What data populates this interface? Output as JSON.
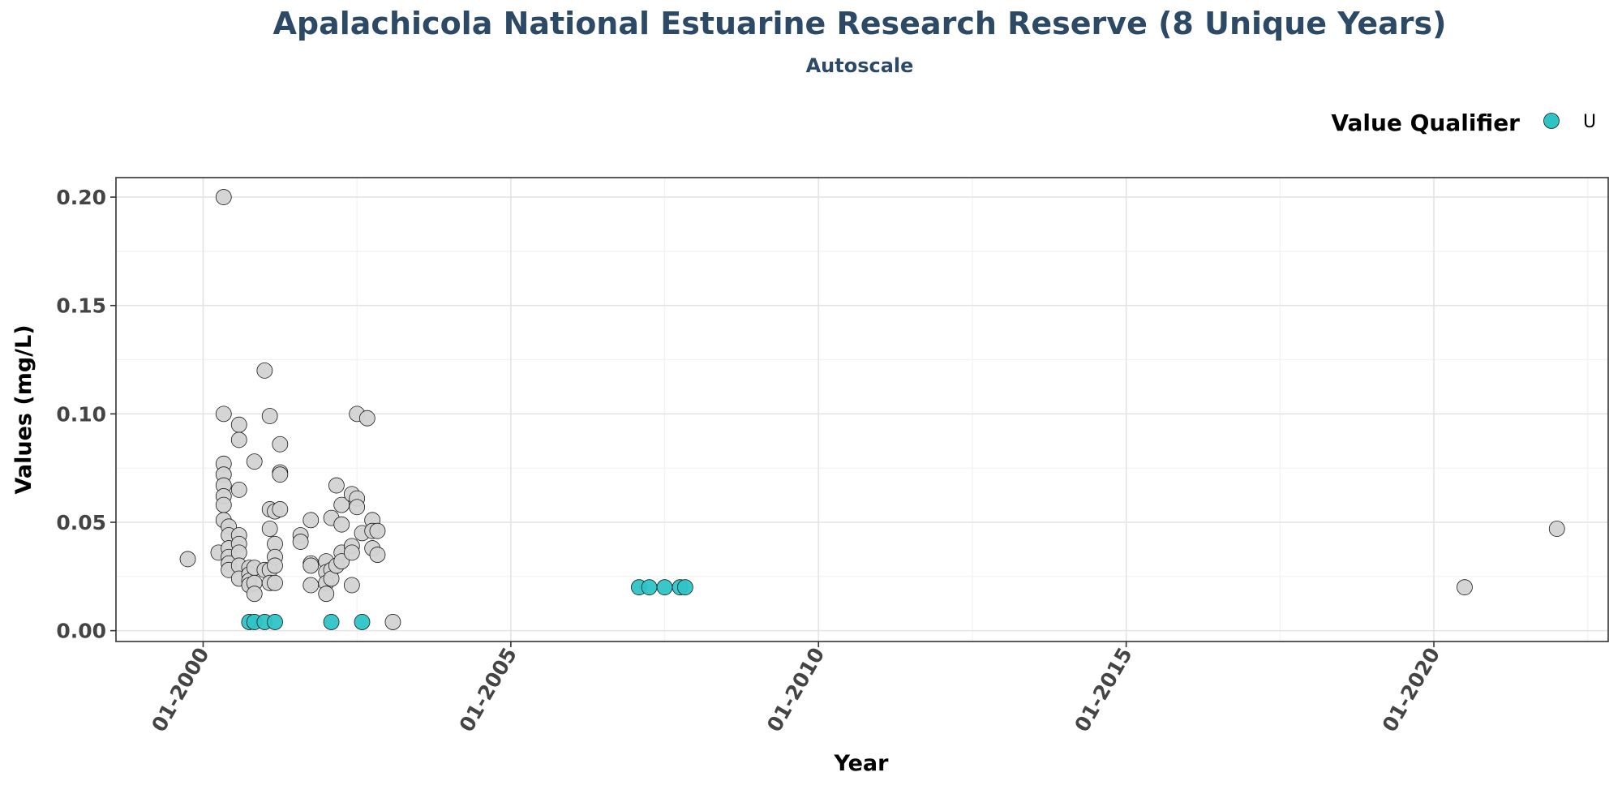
{
  "chart_data": {
    "type": "scatter",
    "title": "Apalachicola National Estuarine Research Reserve (8 Unique Years)",
    "subtitle": "Autoscale",
    "xlabel": "Year",
    "ylabel": "Values (mg/L)",
    "x_ticks": [
      "01-2000",
      "01-2005",
      "01-2010",
      "01-2015",
      "01-2020"
    ],
    "y_ticks": [
      "0.00",
      "0.05",
      "0.10",
      "0.15",
      "0.20"
    ],
    "xlim": [
      "1998-08",
      "2022-11"
    ],
    "ylim": [
      -0.005,
      0.209
    ],
    "grid": true,
    "legend": {
      "title": "Value Qualifier",
      "placement": "top-right",
      "entries": [
        {
          "label": "U",
          "color": "#2ec4c6"
        }
      ]
    },
    "colors": {
      "unqualified_point": "#d3d3d3",
      "qualifier_u": "#2ec4c6",
      "title": "#2c4a66"
    },
    "series": [
      {
        "qualifier": "",
        "points": [
          [
            "1999-10",
            0.033
          ],
          [
            "2000-05",
            0.2
          ],
          [
            "2000-05",
            0.1
          ],
          [
            "2000-05",
            0.077
          ],
          [
            "2000-05",
            0.072
          ],
          [
            "2000-05",
            0.067
          ],
          [
            "2000-05",
            0.062
          ],
          [
            "2000-05",
            0.058
          ],
          [
            "2000-05",
            0.051
          ],
          [
            "2000-04",
            0.036
          ],
          [
            "2000-06",
            0.048
          ],
          [
            "2000-06",
            0.044
          ],
          [
            "2000-06",
            0.038
          ],
          [
            "2000-06",
            0.034
          ],
          [
            "2000-06",
            0.031
          ],
          [
            "2000-06",
            0.028
          ],
          [
            "2000-08",
            0.095
          ],
          [
            "2000-08",
            0.088
          ],
          [
            "2000-08",
            0.065
          ],
          [
            "2000-08",
            0.044
          ],
          [
            "2000-08",
            0.04
          ],
          [
            "2000-08",
            0.036
          ],
          [
            "2000-08",
            0.03
          ],
          [
            "2000-08",
            0.024
          ],
          [
            "2000-10",
            0.029
          ],
          [
            "2000-10",
            0.026
          ],
          [
            "2000-10",
            0.023
          ],
          [
            "2000-10",
            0.021
          ],
          [
            "2000-11",
            0.078
          ],
          [
            "2000-11",
            0.029
          ],
          [
            "2000-11",
            0.022
          ],
          [
            "2000-11",
            0.017
          ],
          [
            "2001-01",
            0.12
          ],
          [
            "2001-01",
            0.028
          ],
          [
            "2001-02",
            0.099
          ],
          [
            "2001-02",
            0.056
          ],
          [
            "2001-02",
            0.047
          ],
          [
            "2001-02",
            0.028
          ],
          [
            "2001-02",
            0.022
          ],
          [
            "2001-03",
            0.055
          ],
          [
            "2001-03",
            0.04
          ],
          [
            "2001-03",
            0.034
          ],
          [
            "2001-03",
            0.03
          ],
          [
            "2001-03",
            0.022
          ],
          [
            "2001-04",
            0.086
          ],
          [
            "2001-04",
            0.073
          ],
          [
            "2001-04",
            0.072
          ],
          [
            "2001-04",
            0.056
          ],
          [
            "2001-08",
            0.044
          ],
          [
            "2001-08",
            0.041
          ],
          [
            "2001-10",
            0.051
          ],
          [
            "2001-10",
            0.031
          ],
          [
            "2001-10",
            0.03
          ],
          [
            "2001-10",
            0.021
          ],
          [
            "2002-01",
            0.032
          ],
          [
            "2002-01",
            0.027
          ],
          [
            "2002-01",
            0.022
          ],
          [
            "2002-01",
            0.017
          ],
          [
            "2002-02",
            0.052
          ],
          [
            "2002-02",
            0.028
          ],
          [
            "2002-02",
            0.024
          ],
          [
            "2002-03",
            0.067
          ],
          [
            "2002-03",
            0.03
          ],
          [
            "2002-04",
            0.058
          ],
          [
            "2002-04",
            0.049
          ],
          [
            "2002-04",
            0.036
          ],
          [
            "2002-04",
            0.032
          ],
          [
            "2002-06",
            0.063
          ],
          [
            "2002-06",
            0.039
          ],
          [
            "2002-06",
            0.036
          ],
          [
            "2002-06",
            0.021
          ],
          [
            "2002-07",
            0.1
          ],
          [
            "2002-07",
            0.061
          ],
          [
            "2002-07",
            0.057
          ],
          [
            "2002-08",
            0.045
          ],
          [
            "2002-09",
            0.098
          ],
          [
            "2002-10",
            0.051
          ],
          [
            "2002-10",
            0.046
          ],
          [
            "2002-10",
            0.038
          ],
          [
            "2002-11",
            0.046
          ],
          [
            "2002-11",
            0.035
          ],
          [
            "2003-02",
            0.004
          ],
          [
            "2020-07",
            0.02
          ],
          [
            "2022-01",
            0.047
          ]
        ]
      },
      {
        "qualifier": "U",
        "points": [
          [
            "2000-10",
            0.004
          ],
          [
            "2000-11",
            0.004
          ],
          [
            "2001-01",
            0.004
          ],
          [
            "2001-03",
            0.004
          ],
          [
            "2002-02",
            0.004
          ],
          [
            "2002-08",
            0.004
          ],
          [
            "2007-02",
            0.02
          ],
          [
            "2007-04",
            0.02
          ],
          [
            "2007-07",
            0.02
          ],
          [
            "2007-10",
            0.02
          ],
          [
            "2007-11",
            0.02
          ]
        ]
      }
    ]
  }
}
